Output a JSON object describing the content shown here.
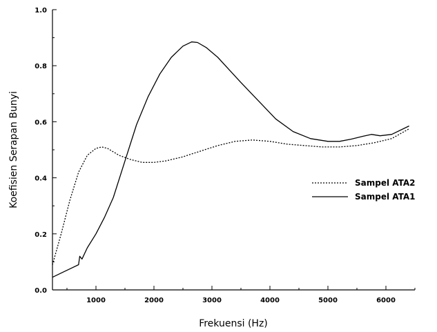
{
  "chart_data": {
    "type": "line",
    "xlabel": "Frekuensi (Hz)",
    "ylabel": "Koefisien Serapan Bunyi",
    "xlim": [
      250,
      6500
    ],
    "ylim": [
      0.0,
      1.0
    ],
    "xticks": [
      1000,
      2000,
      3000,
      4000,
      5000,
      6000
    ],
    "yticks": [
      0.0,
      0.2,
      0.4,
      0.6,
      0.8,
      1.0
    ],
    "ytick_labels": [
      "0.0",
      "0.2",
      "0.4",
      "0.6",
      "0.8",
      "1.0"
    ],
    "legend_position": "right",
    "series": [
      {
        "name": "Sampel ATA2",
        "style": "dotted",
        "color": "#000000",
        "x": [
          250,
          400,
          550,
          700,
          850,
          1000,
          1100,
          1200,
          1400,
          1600,
          1800,
          2000,
          2200,
          2500,
          2800,
          3100,
          3400,
          3700,
          4000,
          4300,
          4600,
          4900,
          5200,
          5500,
          5800,
          6100,
          6400
        ],
        "y": [
          0.09,
          0.2,
          0.32,
          0.42,
          0.48,
          0.505,
          0.51,
          0.505,
          0.48,
          0.465,
          0.455,
          0.455,
          0.46,
          0.475,
          0.495,
          0.515,
          0.53,
          0.535,
          0.53,
          0.52,
          0.515,
          0.51,
          0.51,
          0.515,
          0.525,
          0.54,
          0.575
        ]
      },
      {
        "name": "Sampel ATA1",
        "style": "solid",
        "color": "#000000",
        "x": [
          250,
          400,
          550,
          700,
          720,
          760,
          850,
          1000,
          1150,
          1300,
          1500,
          1700,
          1900,
          2100,
          2300,
          2500,
          2650,
          2750,
          2900,
          3100,
          3300,
          3500,
          3800,
          4100,
          4400,
          4700,
          5000,
          5200,
          5400,
          5600,
          5750,
          5900,
          6100,
          6400
        ],
        "y": [
          0.045,
          0.06,
          0.075,
          0.09,
          0.12,
          0.11,
          0.15,
          0.2,
          0.26,
          0.33,
          0.46,
          0.59,
          0.69,
          0.77,
          0.83,
          0.87,
          0.885,
          0.883,
          0.865,
          0.83,
          0.785,
          0.74,
          0.675,
          0.61,
          0.565,
          0.54,
          0.53,
          0.53,
          0.538,
          0.548,
          0.555,
          0.55,
          0.555,
          0.585
        ]
      }
    ]
  }
}
